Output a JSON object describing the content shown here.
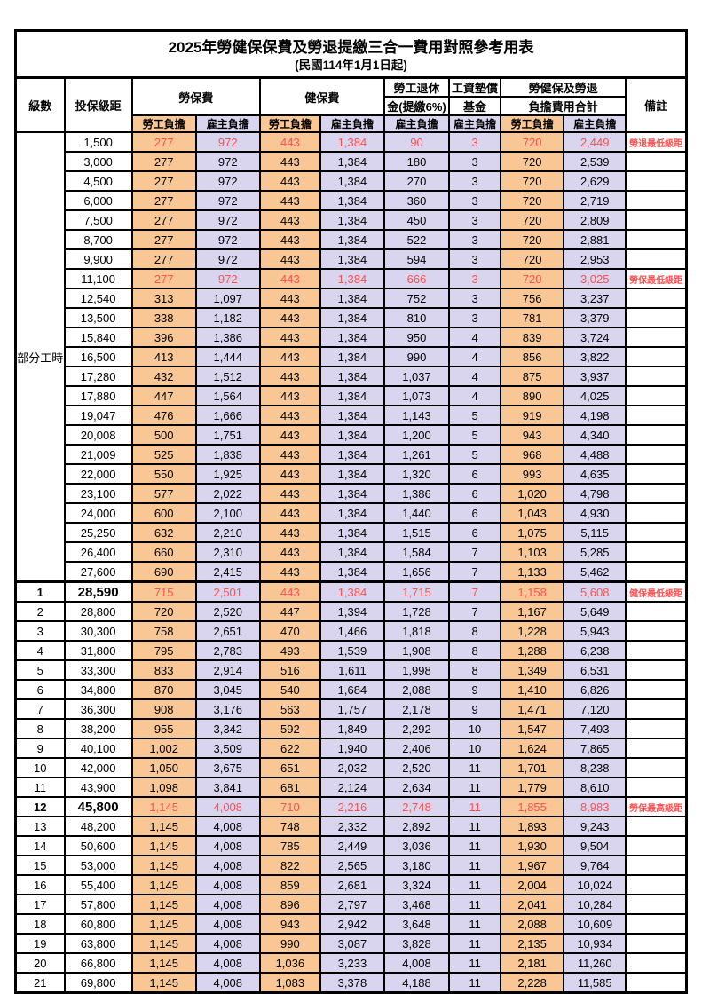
{
  "title": "2025年勞健保保費及勞退提繳三合一費用對照參考用表",
  "subtitle": "(民國114年1月1日起)",
  "colors": {
    "emp-bg": "#F8C795",
    "er-bg": "#DAD5EF",
    "hl-red": "#FF5050"
  },
  "header": {
    "level": "級數",
    "bracket": "投保級距",
    "labor_ins": "勞保費",
    "health_ins": "健保費",
    "pension_line1": "勞工退休",
    "pension_line2": "金(提繳6%)",
    "wage_fund_line1": "工資墊償",
    "wage_fund_line2": "基金",
    "total_line1": "勞健保及勞退",
    "total_line2": "負擔費用合計",
    "remarks": "備註",
    "employee": "勞工負擔",
    "employer": "雇主負擔"
  },
  "part_time": {
    "label": "部分工時",
    "rowspan": 23
  },
  "rows": [
    {
      "level": "",
      "bracket": "1,500",
      "cells": [
        "277",
        "972",
        "443",
        "1,384",
        "90",
        "3",
        "720",
        "2,449"
      ],
      "remark": "勞退最低級距",
      "red": true
    },
    {
      "level": "",
      "bracket": "3,000",
      "cells": [
        "277",
        "972",
        "443",
        "1,384",
        "180",
        "3",
        "720",
        "2,539"
      ]
    },
    {
      "level": "",
      "bracket": "4,500",
      "cells": [
        "277",
        "972",
        "443",
        "1,384",
        "270",
        "3",
        "720",
        "2,629"
      ]
    },
    {
      "level": "",
      "bracket": "6,000",
      "cells": [
        "277",
        "972",
        "443",
        "1,384",
        "360",
        "3",
        "720",
        "2,719"
      ]
    },
    {
      "level": "",
      "bracket": "7,500",
      "cells": [
        "277",
        "972",
        "443",
        "1,384",
        "450",
        "3",
        "720",
        "2,809"
      ]
    },
    {
      "level": "",
      "bracket": "8,700",
      "cells": [
        "277",
        "972",
        "443",
        "1,384",
        "522",
        "3",
        "720",
        "2,881"
      ]
    },
    {
      "level": "",
      "bracket": "9,900",
      "cells": [
        "277",
        "972",
        "443",
        "1,384",
        "594",
        "3",
        "720",
        "2,953"
      ]
    },
    {
      "level": "",
      "bracket": "11,100",
      "cells": [
        "277",
        "972",
        "443",
        "1,384",
        "666",
        "3",
        "720",
        "3,025"
      ],
      "remark": "勞保最低級距",
      "red": true
    },
    {
      "level": "",
      "bracket": "12,540",
      "cells": [
        "313",
        "1,097",
        "443",
        "1,384",
        "752",
        "3",
        "756",
        "3,237"
      ]
    },
    {
      "level": "",
      "bracket": "13,500",
      "cells": [
        "338",
        "1,182",
        "443",
        "1,384",
        "810",
        "3",
        "781",
        "3,379"
      ]
    },
    {
      "level": "",
      "bracket": "15,840",
      "cells": [
        "396",
        "1,386",
        "443",
        "1,384",
        "950",
        "4",
        "839",
        "3,724"
      ]
    },
    {
      "level": "",
      "bracket": "16,500",
      "cells": [
        "413",
        "1,444",
        "443",
        "1,384",
        "990",
        "4",
        "856",
        "3,822"
      ]
    },
    {
      "level": "",
      "bracket": "17,280",
      "cells": [
        "432",
        "1,512",
        "443",
        "1,384",
        "1,037",
        "4",
        "875",
        "3,937"
      ]
    },
    {
      "level": "",
      "bracket": "17,880",
      "cells": [
        "447",
        "1,564",
        "443",
        "1,384",
        "1,073",
        "4",
        "890",
        "4,025"
      ]
    },
    {
      "level": "",
      "bracket": "19,047",
      "cells": [
        "476",
        "1,666",
        "443",
        "1,384",
        "1,143",
        "5",
        "919",
        "4,198"
      ]
    },
    {
      "level": "",
      "bracket": "20,008",
      "cells": [
        "500",
        "1,751",
        "443",
        "1,384",
        "1,200",
        "5",
        "943",
        "4,340"
      ]
    },
    {
      "level": "",
      "bracket": "21,009",
      "cells": [
        "525",
        "1,838",
        "443",
        "1,384",
        "1,261",
        "5",
        "968",
        "4,488"
      ]
    },
    {
      "level": "",
      "bracket": "22,000",
      "cells": [
        "550",
        "1,925",
        "443",
        "1,384",
        "1,320",
        "6",
        "993",
        "4,635"
      ]
    },
    {
      "level": "",
      "bracket": "23,100",
      "cells": [
        "577",
        "2,022",
        "443",
        "1,384",
        "1,386",
        "6",
        "1,020",
        "4,798"
      ]
    },
    {
      "level": "",
      "bracket": "24,000",
      "cells": [
        "600",
        "2,100",
        "443",
        "1,384",
        "1,440",
        "6",
        "1,043",
        "4,930"
      ]
    },
    {
      "level": "",
      "bracket": "25,250",
      "cells": [
        "632",
        "2,210",
        "443",
        "1,384",
        "1,515",
        "6",
        "1,075",
        "5,115"
      ]
    },
    {
      "level": "",
      "bracket": "26,400",
      "cells": [
        "660",
        "2,310",
        "443",
        "1,384",
        "1,584",
        "7",
        "1,103",
        "5,285"
      ]
    },
    {
      "level": "",
      "bracket": "27,600",
      "cells": [
        "690",
        "2,415",
        "443",
        "1,384",
        "1,656",
        "7",
        "1,133",
        "5,462"
      ]
    },
    {
      "level": "1",
      "bracket": "28,590",
      "cells": [
        "715",
        "2,501",
        "443",
        "1,384",
        "1,715",
        "7",
        "1,158",
        "5,608"
      ],
      "remark": "健保最低級距",
      "red": true,
      "key": true,
      "thickTop": true
    },
    {
      "level": "2",
      "bracket": "28,800",
      "cells": [
        "720",
        "2,520",
        "447",
        "1,394",
        "1,728",
        "7",
        "1,167",
        "5,649"
      ]
    },
    {
      "level": "3",
      "bracket": "30,300",
      "cells": [
        "758",
        "2,651",
        "470",
        "1,466",
        "1,818",
        "8",
        "1,228",
        "5,943"
      ]
    },
    {
      "level": "4",
      "bracket": "31,800",
      "cells": [
        "795",
        "2,783",
        "493",
        "1,539",
        "1,908",
        "8",
        "1,288",
        "6,238"
      ]
    },
    {
      "level": "5",
      "bracket": "33,300",
      "cells": [
        "833",
        "2,914",
        "516",
        "1,611",
        "1,998",
        "8",
        "1,349",
        "6,531"
      ]
    },
    {
      "level": "6",
      "bracket": "34,800",
      "cells": [
        "870",
        "3,045",
        "540",
        "1,684",
        "2,088",
        "9",
        "1,410",
        "6,826"
      ]
    },
    {
      "level": "7",
      "bracket": "36,300",
      "cells": [
        "908",
        "3,176",
        "563",
        "1,757",
        "2,178",
        "9",
        "1,471",
        "7,120"
      ]
    },
    {
      "level": "8",
      "bracket": "38,200",
      "cells": [
        "955",
        "3,342",
        "592",
        "1,849",
        "2,292",
        "10",
        "1,547",
        "7,493"
      ]
    },
    {
      "level": "9",
      "bracket": "40,100",
      "cells": [
        "1,002",
        "3,509",
        "622",
        "1,940",
        "2,406",
        "10",
        "1,624",
        "7,865"
      ]
    },
    {
      "level": "10",
      "bracket": "42,000",
      "cells": [
        "1,050",
        "3,675",
        "651",
        "2,032",
        "2,520",
        "11",
        "1,701",
        "8,238"
      ]
    },
    {
      "level": "11",
      "bracket": "43,900",
      "cells": [
        "1,098",
        "3,841",
        "681",
        "2,124",
        "2,634",
        "11",
        "1,779",
        "8,610"
      ]
    },
    {
      "level": "12",
      "bracket": "45,800",
      "cells": [
        "1,145",
        "4,008",
        "710",
        "2,216",
        "2,748",
        "11",
        "1,855",
        "8,983"
      ],
      "remark": "勞保最高級距",
      "red": true,
      "key": true
    },
    {
      "level": "13",
      "bracket": "48,200",
      "cells": [
        "1,145",
        "4,008",
        "748",
        "2,332",
        "2,892",
        "11",
        "1,893",
        "9,243"
      ]
    },
    {
      "level": "14",
      "bracket": "50,600",
      "cells": [
        "1,145",
        "4,008",
        "785",
        "2,449",
        "3,036",
        "11",
        "1,930",
        "9,504"
      ]
    },
    {
      "level": "15",
      "bracket": "53,000",
      "cells": [
        "1,145",
        "4,008",
        "822",
        "2,565",
        "3,180",
        "11",
        "1,967",
        "9,764"
      ]
    },
    {
      "level": "16",
      "bracket": "55,400",
      "cells": [
        "1,145",
        "4,008",
        "859",
        "2,681",
        "3,324",
        "11",
        "2,004",
        "10,024"
      ]
    },
    {
      "level": "17",
      "bracket": "57,800",
      "cells": [
        "1,145",
        "4,008",
        "896",
        "2,797",
        "3,468",
        "11",
        "2,041",
        "10,284"
      ]
    },
    {
      "level": "18",
      "bracket": "60,800",
      "cells": [
        "1,145",
        "4,008",
        "943",
        "2,942",
        "3,648",
        "11",
        "2,088",
        "10,609"
      ]
    },
    {
      "level": "19",
      "bracket": "63,800",
      "cells": [
        "1,145",
        "4,008",
        "990",
        "3,087",
        "3,828",
        "11",
        "2,135",
        "10,934"
      ]
    },
    {
      "level": "20",
      "bracket": "66,800",
      "cells": [
        "1,145",
        "4,008",
        "1,036",
        "3,233",
        "4,008",
        "11",
        "2,181",
        "11,260"
      ]
    },
    {
      "level": "21",
      "bracket": "69,800",
      "cells": [
        "1,145",
        "4,008",
        "1,083",
        "3,378",
        "4,188",
        "11",
        "2,228",
        "11,585"
      ]
    }
  ]
}
